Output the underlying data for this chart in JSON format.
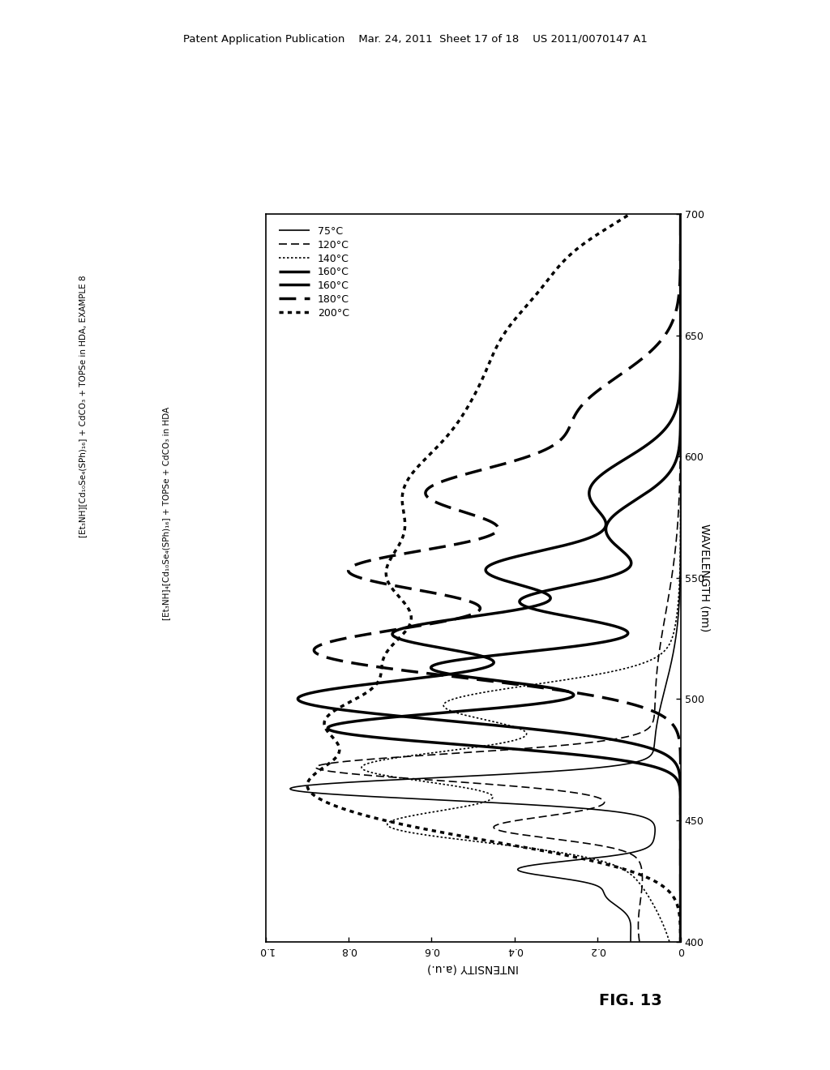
{
  "title_header": "Patent Application Publication    Mar. 24, 2011  Sheet 17 of 18    US 2011/0070147 A1",
  "fig_label": "FIG. 13",
  "wavelength_label": "WAVELENGTH (nm)",
  "intensity_label": "INTENSITY (a.u.)",
  "wl_min": 400,
  "wl_max": 700,
  "int_min": 0,
  "int_max": 1,
  "wl_ticks": [
    400,
    450,
    500,
    550,
    600,
    650,
    700
  ],
  "int_ticks": [
    0,
    0.2,
    0.4,
    0.6,
    0.8,
    1.0
  ],
  "legend_labels": [
    "75°C",
    "120°C",
    "140°C",
    "160°C",
    "160°C",
    "180°C",
    "200°C"
  ],
  "line_styles": [
    "solid",
    "dashed",
    "dotted",
    "solid",
    "solid",
    "dashed",
    "dotted"
  ],
  "line_widths": [
    1.2,
    1.2,
    1.2,
    2.5,
    2.5,
    2.5,
    2.5
  ],
  "annotation1": "[Et₃NH][Cd₁₀Se₄(SPh)₁₆] + CdCO₃ + TOPSe in HDA, EXAMPLE 8",
  "annotation2": "[Et₃NH]₄[Cd₁₀Se₄(SPh)₁₆] + TOPSe + CdCO₃ in HDA",
  "background_color": "#ffffff"
}
